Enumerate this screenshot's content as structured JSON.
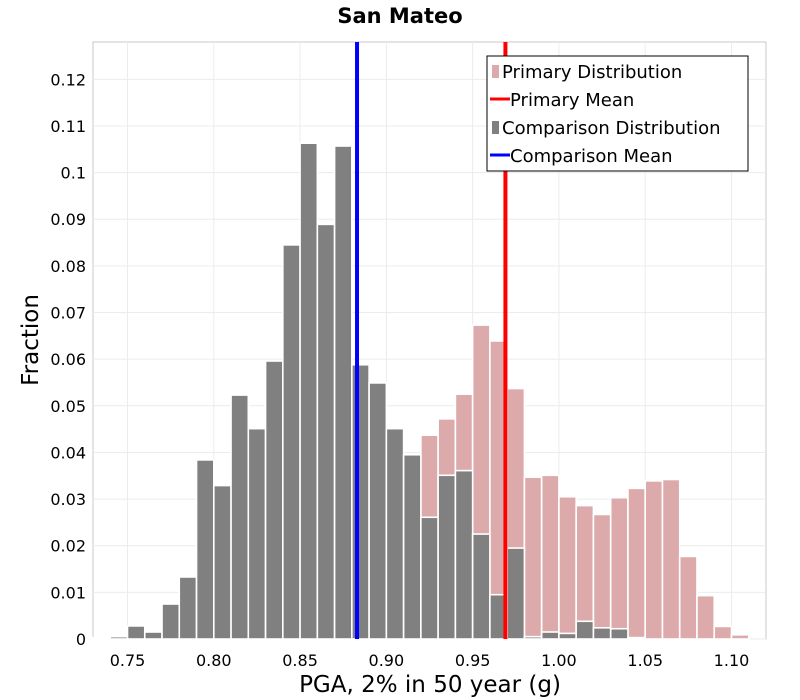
{
  "chart_data": {
    "type": "bar",
    "title": "San Mateo",
    "xlabel": "PGA, 2% in 50 year (g)",
    "ylabel": "Fraction",
    "xlim": [
      0.73,
      1.12
    ],
    "ylim": [
      0,
      0.128
    ],
    "grid": true,
    "legend_placement": "top-right",
    "bin_width": 0.01,
    "x_ticks": [
      "0.75",
      "0.80",
      "0.85",
      "0.90",
      "0.95",
      "1.00",
      "1.05",
      "1.10"
    ],
    "x_tick_values": [
      0.75,
      0.8,
      0.85,
      0.9,
      0.95,
      1.0,
      1.05,
      1.1
    ],
    "y_ticks": [
      "0",
      "0.01",
      "0.02",
      "0.03",
      "0.04",
      "0.05",
      "0.06",
      "0.07",
      "0.08",
      "0.09",
      "0.1",
      "0.11",
      "0.12"
    ],
    "y_tick_values": [
      0,
      0.01,
      0.02,
      0.03,
      0.04,
      0.05,
      0.06,
      0.07,
      0.08,
      0.09,
      0.1,
      0.11,
      0.12
    ],
    "x": [
      0.735,
      0.745,
      0.755,
      0.765,
      0.775,
      0.785,
      0.795,
      0.805,
      0.815,
      0.825,
      0.835,
      0.845,
      0.855,
      0.865,
      0.875,
      0.885,
      0.895,
      0.905,
      0.915,
      0.925,
      0.935,
      0.945,
      0.955,
      0.965,
      0.975,
      0.985,
      0.995,
      1.005,
      1.015,
      1.025,
      1.035,
      1.045,
      1.055,
      1.065,
      1.075,
      1.085,
      1.095,
      1.105,
      1.115
    ],
    "series": [
      {
        "name": "Primary Distribution",
        "color": "#dcaaaa",
        "values": [
          0.0003,
          0.0007,
          0.0007,
          0.0015,
          0.0022,
          0.0015,
          0.0055,
          0.0105,
          0.0255,
          0.025,
          0.0315,
          0.03,
          0.035,
          0.0315,
          0.037,
          0.045,
          0.051,
          0.0375,
          0.0365,
          0.0437,
          0.0472,
          0.0525,
          0.0673,
          0.0639,
          0.0537,
          0.0347,
          0.0351,
          0.0305,
          0.0286,
          0.0267,
          0.0303,
          0.0323,
          0.0339,
          0.0342,
          0.0177,
          0.0093,
          0.0027,
          0.0009,
          0
        ]
      },
      {
        "name": "Comparison Distribution",
        "color": "#808080",
        "values": [
          0,
          0.0005,
          0.0028,
          0.0015,
          0.0075,
          0.0133,
          0.0384,
          0.0329,
          0.0523,
          0.0451,
          0.0596,
          0.0845,
          0.1063,
          0.0889,
          0.1057,
          0.0588,
          0.0549,
          0.0451,
          0.0395,
          0.0261,
          0.0351,
          0.0361,
          0.0225,
          0.0095,
          0.0195,
          0.0005,
          0.0015,
          0.0012,
          0.0038,
          0.0024,
          0.0022,
          0.0003,
          0,
          0,
          0,
          0,
          0,
          0,
          0
        ]
      }
    ],
    "lines": [
      {
        "name": "Primary Mean",
        "color": "#ff0000",
        "x": 0.969
      },
      {
        "name": "Comparison Mean",
        "color": "#0000ff",
        "x": 0.883
      }
    ]
  },
  "legend": {
    "items": [
      {
        "label": "Primary Distribution",
        "kind": "box",
        "color": "#dcaaaa"
      },
      {
        "label": "Primary Mean",
        "kind": "line",
        "color": "#ff0000"
      },
      {
        "label": "Comparison Distribution",
        "kind": "box",
        "color": "#808080"
      },
      {
        "label": "Comparison Mean",
        "kind": "line",
        "color": "#0000ff"
      }
    ]
  }
}
